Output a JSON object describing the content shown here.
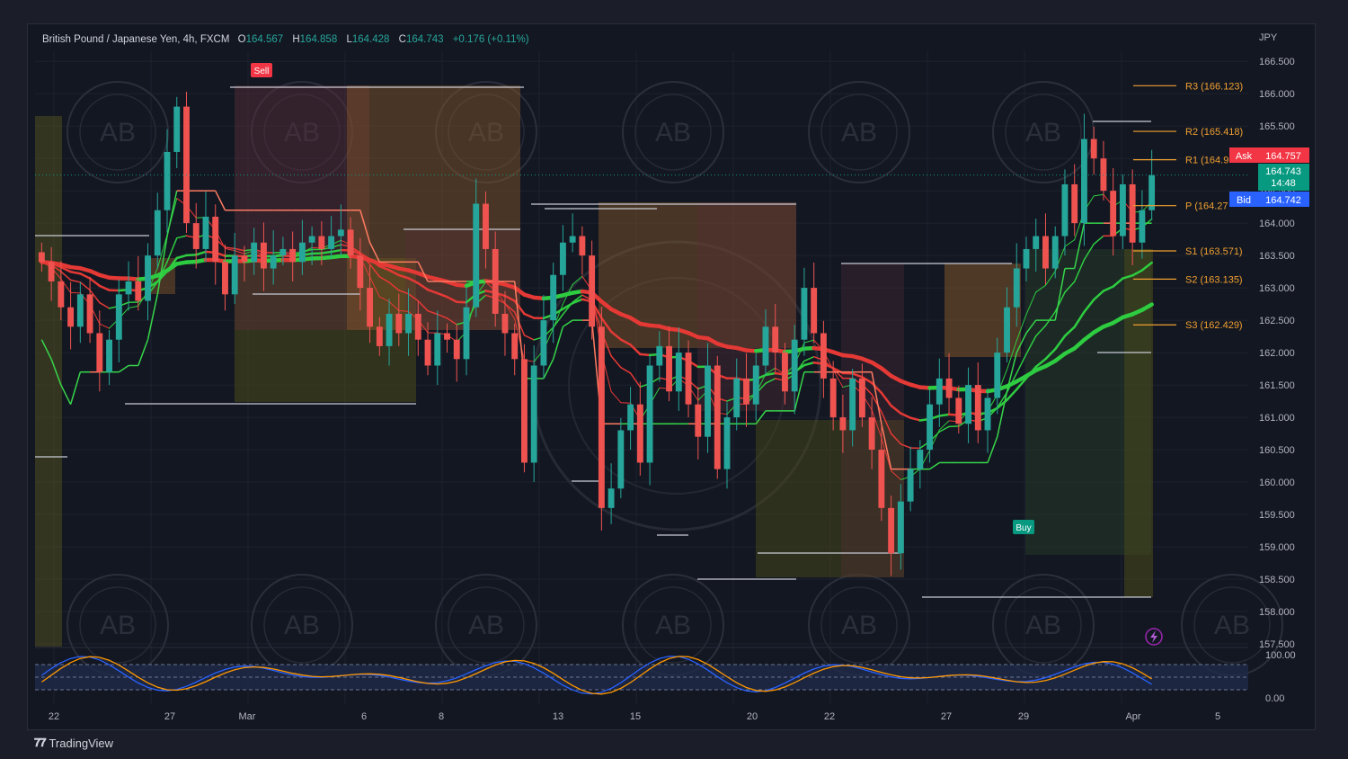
{
  "header": {
    "symbol": "British Pound / Japanese Yen, 4h, FXCM",
    "o_label": "O",
    "o_value": "164.567",
    "h_label": "H",
    "h_value": "164.858",
    "l_label": "L",
    "l_value": "164.428",
    "c_label": "C",
    "c_value": "164.743",
    "change": "+0.176 (+0.11%)"
  },
  "currency": "JPY",
  "price_labels": {
    "ask_label": "Ask",
    "ask_value": "164.757",
    "last_value": "164.743",
    "countdown": "14:48",
    "bid_label": "Bid",
    "bid_value": "164.742"
  },
  "pivots": [
    {
      "label": "R3 (166.123)",
      "value": 166.123
    },
    {
      "label": "R2 (165.418)",
      "value": 165.418
    },
    {
      "label": "R1 (164.9",
      "value": 164.98
    },
    {
      "label": "P (164.27",
      "value": 164.27
    },
    {
      "label": "S1 (163.571)",
      "value": 163.571
    },
    {
      "label": "S2 (163.135)",
      "value": 163.135
    },
    {
      "label": "S3 (162.429)",
      "value": 162.429
    }
  ],
  "signals": [
    {
      "label": "Sell",
      "color": "#f23645"
    },
    {
      "label": "Buy",
      "color": "#089981"
    }
  ],
  "osc_axis": [
    "100.00",
    "0.00"
  ],
  "brand": "TradingView",
  "colors": {
    "up": "#26a69a",
    "down": "#ef5350",
    "green_ma": "#2ecc40",
    "red_ma": "#e53935",
    "pivot": "#f0a030",
    "bg": "#131722"
  },
  "chart_data": {
    "type": "candlestick",
    "title": "British Pound / Japanese Yen, 4h, FXCM",
    "ylim": [
      157.5,
      166.6
    ],
    "y_ticks": [
      "166.500",
      "166.000",
      "165.500",
      "165.000",
      "164.500",
      "164.000",
      "163.500",
      "163.000",
      "162.500",
      "162.000",
      "161.500",
      "161.000",
      "160.500",
      "160.000",
      "159.500",
      "159.000",
      "158.500",
      "158.000",
      "157.500"
    ],
    "x_ticks": [
      "22",
      "27",
      "Mar",
      "6",
      "8",
      "13",
      "15",
      "20",
      "22",
      "27",
      "29",
      "Apr",
      "5"
    ],
    "closes": [
      163.4,
      163.1,
      162.7,
      162.4,
      162.9,
      162.3,
      161.7,
      162.2,
      162.9,
      163.1,
      162.8,
      163.5,
      164.2,
      165.1,
      165.8,
      164.0,
      163.6,
      164.1,
      163.4,
      162.9,
      163.5,
      163.4,
      163.7,
      163.3,
      163.5,
      163.6,
      163.4,
      163.7,
      163.8,
      163.6,
      163.8,
      163.9,
      163.5,
      163.0,
      162.4,
      162.1,
      162.6,
      162.3,
      162.6,
      162.2,
      161.8,
      162.3,
      162.2,
      161.9,
      162.7,
      164.3,
      163.6,
      162.6,
      162.3,
      161.9,
      160.3,
      161.8,
      162.5,
      163.2,
      163.7,
      163.8,
      163.5,
      162.4,
      159.6,
      159.9,
      160.8,
      161.2,
      160.3,
      161.8,
      162.1,
      161.4,
      162.0,
      161.2,
      160.7,
      161.8,
      160.2,
      161.0,
      161.6,
      161.2,
      161.8,
      162.4,
      162.0,
      161.4,
      162.2,
      163.0,
      162.3,
      161.6,
      161.0,
      160.8,
      161.6,
      161.0,
      160.5,
      159.6,
      158.9,
      159.7,
      160.2,
      160.5,
      161.2,
      161.6,
      161.3,
      160.9,
      161.5,
      160.8,
      161.3,
      162.0,
      162.7,
      163.3,
      163.6,
      163.8,
      163.3,
      163.8,
      164.6,
      164.0,
      165.3,
      165.0,
      164.5,
      163.8,
      164.6,
      163.7,
      164.2,
      164.74
    ],
    "series": [
      {
        "name": "",
        "kind": "ema_fast",
        "color": "#35c840"
      },
      {
        "name": "",
        "kind": "ema_slow",
        "color": "#2ee83a"
      }
    ],
    "oscillator": {
      "range": [
        0,
        100
      ],
      "bands": [
        80,
        50,
        20
      ]
    }
  }
}
